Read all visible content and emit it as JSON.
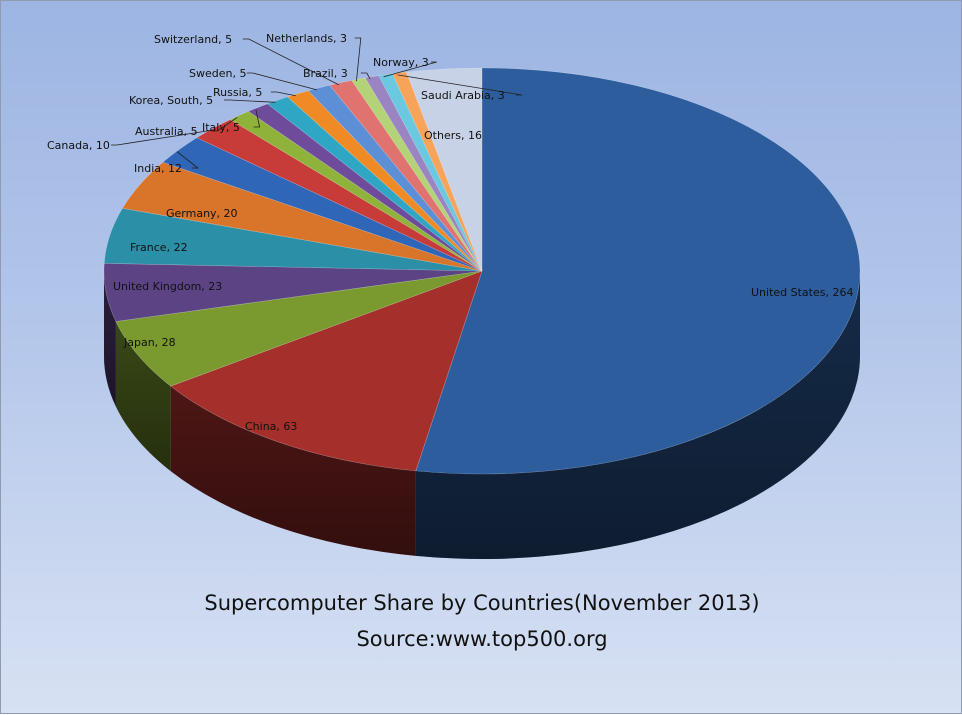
{
  "chart_data": {
    "type": "pie",
    "title": "Supercomputer Share by Countries(November 2013)",
    "subtitle": "Source:www.top500.org",
    "slices": [
      {
        "label": "United States",
        "value": 264,
        "color": "#2d5d9d"
      },
      {
        "label": "China",
        "value": 63,
        "color": "#a52f2b"
      },
      {
        "label": "Japan",
        "value": 28,
        "color": "#7a9a2f"
      },
      {
        "label": "United Kingdom",
        "value": 23,
        "color": "#5c4384"
      },
      {
        "label": "France",
        "value": 22,
        "color": "#2b8fa8"
      },
      {
        "label": "Germany",
        "value": 20,
        "color": "#d9752b"
      },
      {
        "label": "India",
        "value": 12,
        "color": "#2f66b8"
      },
      {
        "label": "Canada",
        "value": 10,
        "color": "#c73b38"
      },
      {
        "label": "Australia",
        "value": 5,
        "color": "#8fb33a"
      },
      {
        "label": "Italy",
        "value": 5,
        "color": "#6e4c9b"
      },
      {
        "label": "Korea, South",
        "value": 5,
        "color": "#2fa7c4"
      },
      {
        "label": "Russia",
        "value": 5,
        "color": "#f08a24"
      },
      {
        "label": "Sweden",
        "value": 5,
        "color": "#5d8fd6"
      },
      {
        "label": "Switzerland",
        "value": 5,
        "color": "#e07270"
      },
      {
        "label": "Netherlands",
        "value": 3,
        "color": "#b4d277"
      },
      {
        "label": "Brazil",
        "value": 3,
        "color": "#9b84c2"
      },
      {
        "label": "Norway",
        "value": 3,
        "color": "#6ac8e0"
      },
      {
        "label": "Saudi Arabia",
        "value": 3,
        "color": "#f7a35a"
      },
      {
        "label": "Others",
        "value": 16,
        "color": "#c7d2e6"
      }
    ]
  }
}
